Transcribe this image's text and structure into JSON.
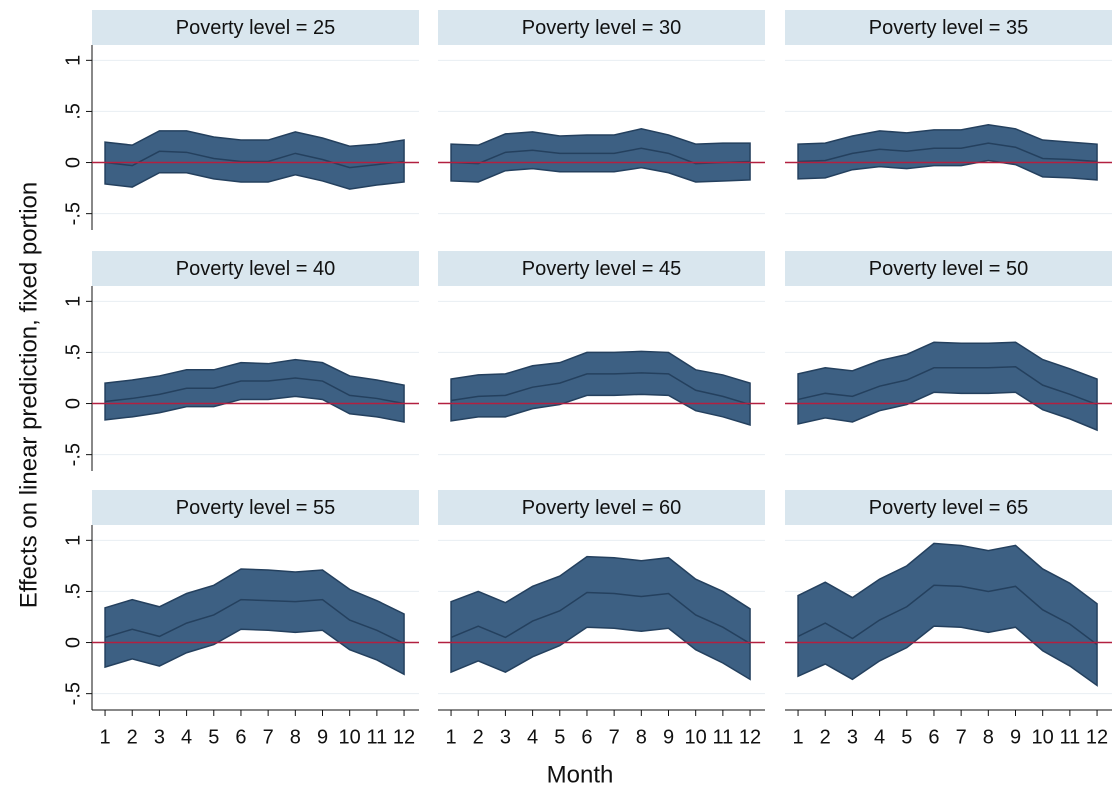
{
  "axis_labels": {
    "y": "Effects on linear prediction, fixed portion",
    "x": "Month"
  },
  "chart_data": [
    {
      "type": "band",
      "title": "Poverty level = 25",
      "x": [
        1,
        2,
        3,
        4,
        5,
        6,
        7,
        8,
        9,
        10,
        11,
        12
      ],
      "values": [
        0,
        -0.03,
        0.11,
        0.1,
        0.04,
        0.01,
        0.01,
        0.09,
        0.03,
        -0.05,
        -0.02,
        0.01
      ],
      "upper": [
        0.2,
        0.17,
        0.31,
        0.31,
        0.25,
        0.22,
        0.22,
        0.3,
        0.24,
        0.16,
        0.18,
        0.22
      ],
      "lower": [
        -0.21,
        -0.24,
        -0.1,
        -0.1,
        -0.16,
        -0.19,
        -0.19,
        -0.12,
        -0.18,
        -0.26,
        -0.22,
        -0.19
      ],
      "color": "#3d6083",
      "hline": 0,
      "hline_color": "#b22040",
      "xlim": [
        0.52,
        12.55
      ],
      "ylim": [
        -0.66,
        1.15
      ],
      "yticks": [
        {
          "value": 1,
          "label": "1"
        },
        {
          "value": 0.5,
          "label": ".5"
        },
        {
          "value": 0,
          "label": "0"
        },
        {
          "value": -0.5,
          "label": "-.5"
        }
      ]
    },
    {
      "type": "band",
      "title": "Poverty level = 30",
      "x": [
        1,
        2,
        3,
        4,
        5,
        6,
        7,
        8,
        9,
        10,
        11,
        12
      ],
      "values": [
        0,
        -0.01,
        0.1,
        0.12,
        0.09,
        0.09,
        0.09,
        0.14,
        0.09,
        -0.01,
        0,
        0.01
      ],
      "upper": [
        0.18,
        0.17,
        0.28,
        0.3,
        0.26,
        0.27,
        0.27,
        0.33,
        0.27,
        0.18,
        0.19,
        0.19
      ],
      "lower": [
        -0.18,
        -0.19,
        -0.08,
        -0.06,
        -0.09,
        -0.09,
        -0.09,
        -0.05,
        -0.1,
        -0.19,
        -0.18,
        -0.17
      ],
      "color": "#3d6083",
      "hline": 0,
      "hline_color": "#b22040",
      "xlim": [
        0.52,
        12.55
      ],
      "ylim": [
        -0.66,
        1.15
      ]
    },
    {
      "type": "band",
      "title": "Poverty level = 35",
      "x": [
        1,
        2,
        3,
        4,
        5,
        6,
        7,
        8,
        9,
        10,
        11,
        12
      ],
      "values": [
        0.01,
        0.02,
        0.09,
        0.13,
        0.11,
        0.14,
        0.14,
        0.19,
        0.15,
        0.04,
        0.03,
        0.01
      ],
      "upper": [
        0.18,
        0.19,
        0.26,
        0.31,
        0.29,
        0.32,
        0.32,
        0.37,
        0.33,
        0.22,
        0.2,
        0.18
      ],
      "lower": [
        -0.16,
        -0.15,
        -0.07,
        -0.04,
        -0.06,
        -0.03,
        -0.03,
        0.02,
        -0.02,
        -0.14,
        -0.15,
        -0.17
      ],
      "color": "#3d6083",
      "hline": 0,
      "hline_color": "#b22040",
      "xlim": [
        0.52,
        12.55
      ],
      "ylim": [
        -0.66,
        1.15
      ]
    },
    {
      "type": "band",
      "title": "Poverty level = 40",
      "x": [
        1,
        2,
        3,
        4,
        5,
        6,
        7,
        8,
        9,
        10,
        11,
        12
      ],
      "values": [
        0.02,
        0.05,
        0.09,
        0.15,
        0.15,
        0.22,
        0.22,
        0.25,
        0.22,
        0.08,
        0.05,
        0
      ],
      "upper": [
        0.2,
        0.23,
        0.27,
        0.33,
        0.33,
        0.4,
        0.39,
        0.43,
        0.4,
        0.27,
        0.23,
        0.18
      ],
      "lower": [
        -0.16,
        -0.13,
        -0.09,
        -0.03,
        -0.03,
        0.04,
        0.04,
        0.07,
        0.04,
        -0.1,
        -0.13,
        -0.18
      ],
      "color": "#3d6083",
      "hline": 0,
      "hline_color": "#b22040",
      "xlim": [
        0.52,
        12.55
      ],
      "ylim": [
        -0.66,
        1.15
      ],
      "yticks": [
        {
          "value": 1,
          "label": "1"
        },
        {
          "value": 0.5,
          "label": ".5"
        },
        {
          "value": 0,
          "label": "0"
        },
        {
          "value": -0.5,
          "label": "-.5"
        }
      ]
    },
    {
      "type": "band",
      "title": "Poverty level = 45",
      "x": [
        1,
        2,
        3,
        4,
        5,
        6,
        7,
        8,
        9,
        10,
        11,
        12
      ],
      "values": [
        0.03,
        0.07,
        0.08,
        0.16,
        0.2,
        0.29,
        0.29,
        0.3,
        0.29,
        0.13,
        0.07,
        -0.01
      ],
      "upper": [
        0.24,
        0.28,
        0.29,
        0.37,
        0.4,
        0.5,
        0.5,
        0.51,
        0.5,
        0.33,
        0.28,
        0.2
      ],
      "lower": [
        -0.17,
        -0.13,
        -0.13,
        -0.05,
        -0.01,
        0.08,
        0.08,
        0.09,
        0.08,
        -0.07,
        -0.13,
        -0.21
      ],
      "color": "#3d6083",
      "hline": 0,
      "hline_color": "#b22040",
      "xlim": [
        0.52,
        12.55
      ],
      "ylim": [
        -0.66,
        1.15
      ]
    },
    {
      "type": "band",
      "title": "Poverty level = 50",
      "x": [
        1,
        2,
        3,
        4,
        5,
        6,
        7,
        8,
        9,
        10,
        11,
        12
      ],
      "values": [
        0.04,
        0.1,
        0.07,
        0.17,
        0.23,
        0.35,
        0.35,
        0.35,
        0.36,
        0.18,
        0.09,
        -0.01
      ],
      "upper": [
        0.29,
        0.35,
        0.32,
        0.42,
        0.48,
        0.6,
        0.59,
        0.59,
        0.6,
        0.43,
        0.34,
        0.24
      ],
      "lower": [
        -0.2,
        -0.14,
        -0.18,
        -0.07,
        -0.01,
        0.11,
        0.1,
        0.1,
        0.11,
        -0.06,
        -0.15,
        -0.26
      ],
      "color": "#3d6083",
      "hline": 0,
      "hline_color": "#b22040",
      "xlim": [
        0.52,
        12.55
      ],
      "ylim": [
        -0.66,
        1.15
      ]
    },
    {
      "type": "band",
      "title": "Poverty level = 55",
      "x": [
        1,
        2,
        3,
        4,
        5,
        6,
        7,
        8,
        9,
        10,
        11,
        12
      ],
      "values": [
        0.05,
        0.13,
        0.06,
        0.19,
        0.27,
        0.42,
        0.41,
        0.4,
        0.42,
        0.22,
        0.12,
        -0.01
      ],
      "upper": [
        0.34,
        0.42,
        0.35,
        0.48,
        0.56,
        0.72,
        0.71,
        0.69,
        0.71,
        0.52,
        0.41,
        0.28
      ],
      "lower": [
        -0.24,
        -0.16,
        -0.23,
        -0.1,
        -0.02,
        0.13,
        0.12,
        0.1,
        0.12,
        -0.07,
        -0.17,
        -0.31
      ],
      "color": "#3d6083",
      "hline": 0,
      "hline_color": "#b22040",
      "xlim": [
        0.52,
        12.55
      ],
      "ylim": [
        -0.66,
        1.15
      ],
      "yticks": [
        {
          "value": 1,
          "label": "1"
        },
        {
          "value": 0.5,
          "label": ".5"
        },
        {
          "value": 0,
          "label": "0"
        },
        {
          "value": -0.5,
          "label": "-.5"
        }
      ],
      "xticks": [
        1,
        2,
        3,
        4,
        5,
        6,
        7,
        8,
        9,
        10,
        11,
        12
      ]
    },
    {
      "type": "band",
      "title": "Poverty level = 60",
      "x": [
        1,
        2,
        3,
        4,
        5,
        6,
        7,
        8,
        9,
        10,
        11,
        12
      ],
      "values": [
        0.05,
        0.16,
        0.05,
        0.21,
        0.31,
        0.49,
        0.48,
        0.45,
        0.48,
        0.27,
        0.15,
        -0.01
      ],
      "upper": [
        0.4,
        0.5,
        0.39,
        0.55,
        0.65,
        0.84,
        0.83,
        0.8,
        0.83,
        0.62,
        0.5,
        0.33
      ],
      "lower": [
        -0.29,
        -0.18,
        -0.29,
        -0.14,
        -0.03,
        0.15,
        0.14,
        0.11,
        0.14,
        -0.07,
        -0.2,
        -0.36
      ],
      "color": "#3d6083",
      "hline": 0,
      "hline_color": "#b22040",
      "xlim": [
        0.52,
        12.55
      ],
      "ylim": [
        -0.66,
        1.15
      ],
      "xticks": [
        1,
        2,
        3,
        4,
        5,
        6,
        7,
        8,
        9,
        10,
        11,
        12
      ]
    },
    {
      "type": "band",
      "title": "Poverty level = 65",
      "x": [
        1,
        2,
        3,
        4,
        5,
        6,
        7,
        8,
        9,
        10,
        11,
        12
      ],
      "values": [
        0.06,
        0.19,
        0.04,
        0.22,
        0.35,
        0.56,
        0.55,
        0.5,
        0.55,
        0.32,
        0.18,
        -0.02
      ],
      "upper": [
        0.46,
        0.59,
        0.44,
        0.62,
        0.75,
        0.97,
        0.95,
        0.9,
        0.95,
        0.72,
        0.58,
        0.38
      ],
      "lower": [
        -0.33,
        -0.21,
        -0.36,
        -0.18,
        -0.05,
        0.16,
        0.15,
        0.1,
        0.15,
        -0.08,
        -0.23,
        -0.42
      ],
      "color": "#3d6083",
      "hline": 0,
      "hline_color": "#b22040",
      "xlim": [
        0.52,
        12.55
      ],
      "ylim": [
        -0.66,
        1.15
      ],
      "xticks": [
        1,
        2,
        3,
        4,
        5,
        6,
        7,
        8,
        9,
        10,
        11,
        12
      ]
    }
  ]
}
